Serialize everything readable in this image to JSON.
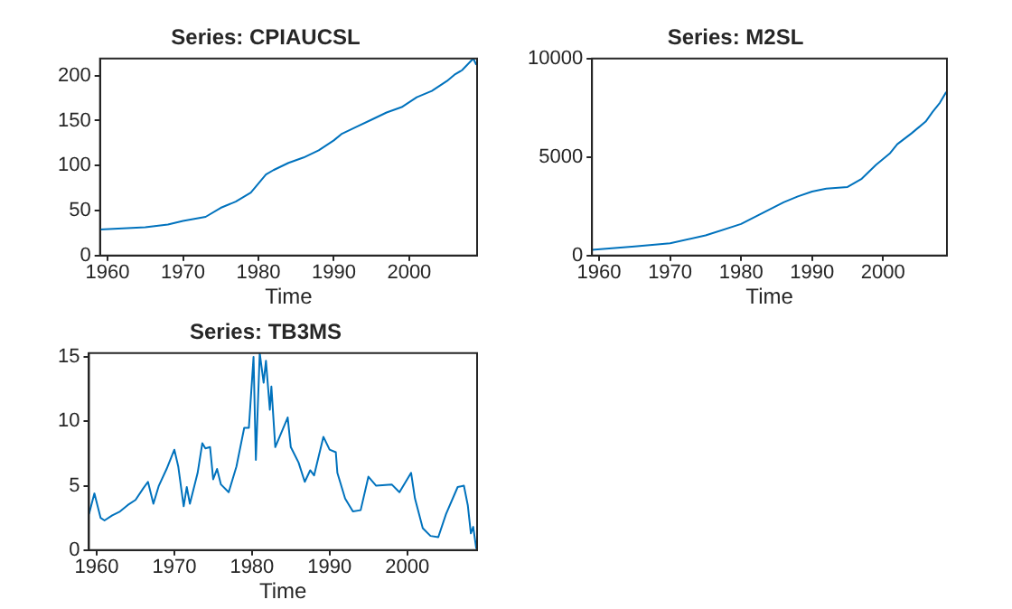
{
  "chart_data": [
    {
      "type": "line",
      "title": "Series: CPIAUCSL",
      "xlabel": "Time",
      "color": "#0072bd",
      "xlim": [
        1959,
        2009
      ],
      "xticks": [
        1960,
        1970,
        1980,
        1990,
        2000
      ],
      "ylim": [
        0,
        219
      ],
      "yticks": [
        0,
        50,
        100,
        150,
        200
      ],
      "grid": false,
      "x": [
        1959,
        1965,
        1968,
        1970,
        1973,
        1975,
        1977,
        1979,
        1980,
        1981,
        1982,
        1984,
        1986,
        1988,
        1990,
        1991,
        1993,
        1995,
        1997,
        1999,
        2001,
        2003,
        2005,
        2006,
        2007,
        2008.5,
        2008.9
      ],
      "values": [
        29,
        31.5,
        34.5,
        38.5,
        43,
        53,
        60,
        70,
        80,
        90,
        95,
        103,
        109,
        117,
        128,
        135,
        143,
        151,
        159,
        165,
        176,
        183,
        194,
        201,
        206,
        219,
        212
      ]
    },
    {
      "type": "line",
      "title": "Series: M2SL",
      "xlabel": "Time",
      "color": "#0072bd",
      "xlim": [
        1959,
        2009
      ],
      "xticks": [
        1960,
        1970,
        1980,
        1990,
        2000
      ],
      "ylim": [
        0,
        10000
      ],
      "yticks": [
        0,
        5000,
        10000
      ],
      "grid": false,
      "x": [
        1959,
        1965,
        1970,
        1975,
        1980,
        1983,
        1986,
        1988,
        1990,
        1992,
        1995,
        1997,
        1999,
        2001,
        2002,
        2004,
        2006,
        2007,
        2008,
        2008.9
      ],
      "values": [
        290,
        460,
        620,
        1020,
        1600,
        2150,
        2700,
        3000,
        3250,
        3400,
        3480,
        3900,
        4600,
        5200,
        5650,
        6200,
        6800,
        7300,
        7750,
        8300
      ]
    },
    {
      "type": "line",
      "title": "Series: TB3MS",
      "xlabel": "Time",
      "color": "#0072bd",
      "xlim": [
        1959,
        2009
      ],
      "xticks": [
        1960,
        1970,
        1980,
        1990,
        2000
      ],
      "ylim": [
        0,
        15.3
      ],
      "yticks": [
        0,
        5,
        10,
        15
      ],
      "grid": false,
      "x": [
        1959,
        1959.7,
        1960.5,
        1961,
        1962,
        1963,
        1964,
        1965,
        1966,
        1966.6,
        1967.3,
        1968,
        1969,
        1970,
        1970.5,
        1971.2,
        1971.6,
        1972,
        1973,
        1973.6,
        1974,
        1974.6,
        1975,
        1975.5,
        1976,
        1977,
        1978,
        1979,
        1979.6,
        1980.2,
        1980.5,
        1981,
        1981.5,
        1981.8,
        1982.3,
        1982.5,
        1983,
        1984.6,
        1985,
        1986,
        1986.8,
        1987.5,
        1988,
        1989.2,
        1990,
        1990.8,
        1991,
        1992,
        1993,
        1994,
        1995,
        1996,
        1998,
        1999,
        2000.5,
        2001,
        2002,
        2003,
        2004,
        2005,
        2006.5,
        2007.3,
        2007.8,
        2008.2,
        2008.5,
        2008.9
      ],
      "values": [
        2.8,
        4.4,
        2.5,
        2.3,
        2.7,
        3.0,
        3.5,
        3.9,
        4.8,
        5.3,
        3.6,
        5.0,
        6.3,
        7.8,
        6.5,
        3.4,
        4.9,
        3.6,
        6.0,
        8.3,
        7.9,
        8.0,
        5.5,
        6.3,
        5.1,
        4.5,
        6.5,
        9.5,
        9.5,
        15.0,
        7.0,
        15.3,
        13.0,
        14.7,
        10.9,
        12.7,
        8.0,
        10.3,
        8.0,
        6.8,
        5.3,
        6.2,
        5.8,
        8.8,
        7.8,
        7.6,
        6.0,
        4.0,
        3.0,
        3.1,
        5.7,
        5.0,
        5.1,
        4.5,
        6.0,
        4.0,
        1.7,
        1.1,
        1.0,
        2.8,
        4.9,
        5.0,
        3.5,
        1.3,
        1.8,
        0.1
      ]
    }
  ]
}
